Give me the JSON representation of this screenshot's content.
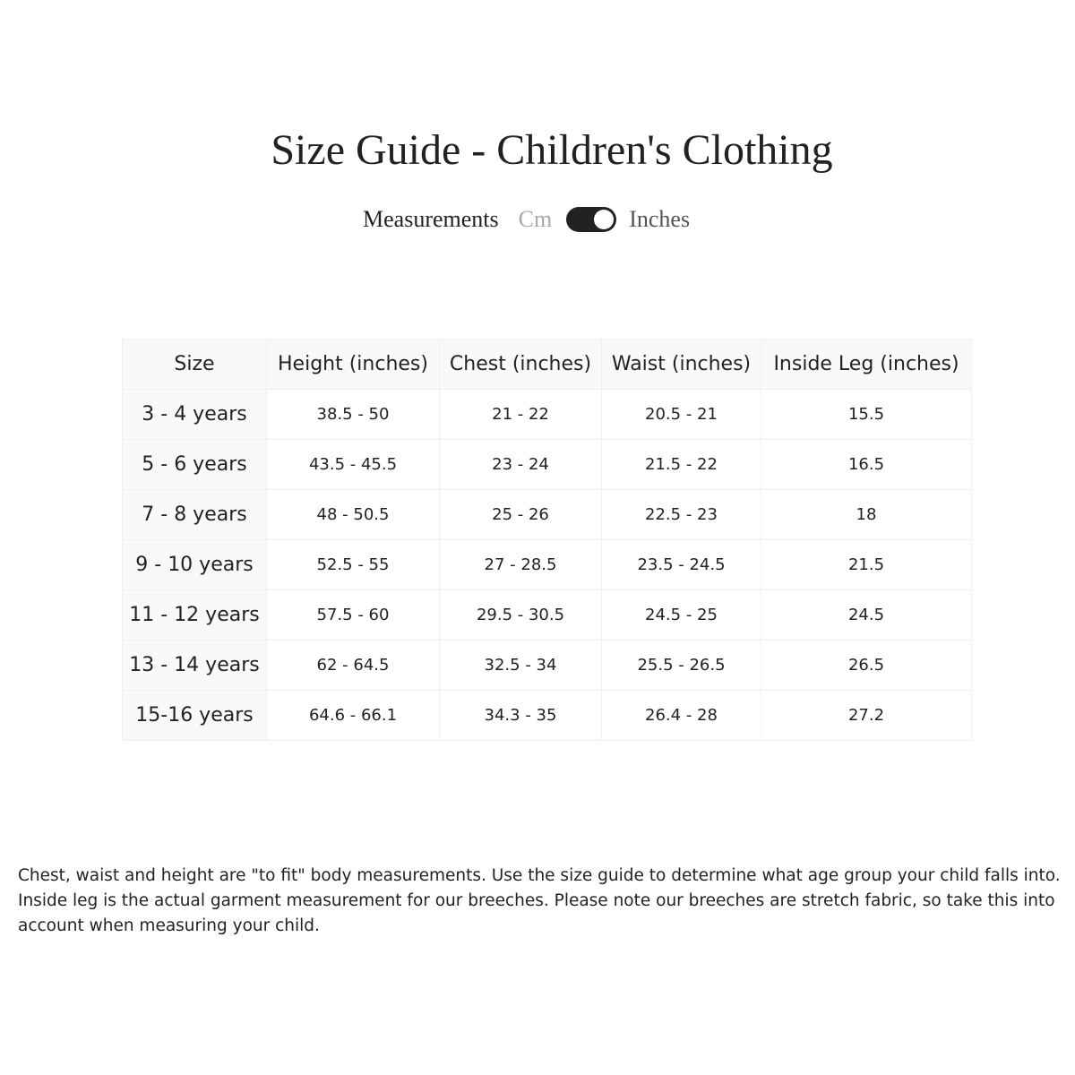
{
  "title": "Size Guide - Children's Clothing",
  "measurements": {
    "label": "Measurements",
    "option_off": "Cm",
    "option_on": "Inches",
    "selected": "Inches"
  },
  "table": {
    "headers": [
      "Size",
      "Height (inches)",
      "Chest (inches)",
      "Waist (inches)",
      "Inside Leg (inches)"
    ],
    "rows": [
      [
        "3 - 4 years",
        "38.5 - 50",
        "21 - 22",
        "20.5 - 21",
        "15.5"
      ],
      [
        "5 - 6 years",
        "43.5 - 45.5",
        "23 - 24",
        "21.5 - 22",
        "16.5"
      ],
      [
        "7 - 8 years",
        "48 - 50.5",
        "25 - 26",
        "22.5 - 23",
        "18"
      ],
      [
        "9 - 10 years",
        "52.5 - 55",
        "27 - 28.5",
        "23.5 - 24.5",
        "21.5"
      ],
      [
        "11 - 12 years",
        "57.5 - 60",
        "29.5 - 30.5",
        "24.5 - 25",
        "24.5"
      ],
      [
        "13 - 14 years",
        "62 - 64.5",
        "32.5 - 34",
        "25.5 - 26.5",
        "26.5"
      ],
      [
        "15-16 years",
        "64.6 - 66.1",
        "34.3 - 35",
        "26.4 - 28",
        "27.2"
      ]
    ]
  },
  "note": "Chest, waist and height are \"to fit\" body measurements. Use the size guide to determine what age group your child falls into. Inside leg is the actual garment measurement for our breeches. Please note our breeches are stretch fabric, so take this into account when measuring your child."
}
